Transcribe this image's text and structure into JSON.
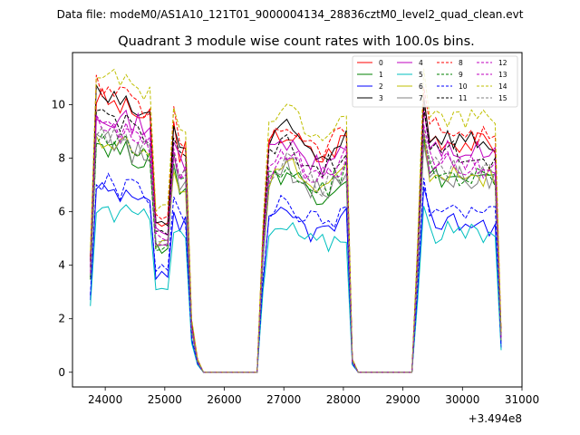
{
  "suptitle": "Data file: modeM0/AS1A10_121T01_9000004134_28836cztM0_level2_quad_clean.evt",
  "chart_data": {
    "type": "line",
    "title": "Quadrant 3 module wise count rates with 100.0s bins.",
    "xlabel": "",
    "ylabel": "",
    "x_offset_label": "+3.494e8",
    "xlim": [
      23450,
      31000
    ],
    "ylim": [
      -0.55,
      11.95
    ],
    "xticks": [
      24000,
      25000,
      26000,
      27000,
      28000,
      29000,
      30000,
      31000
    ],
    "xtick_labels": [
      "24000",
      "25000",
      "26000",
      "27000",
      "28000",
      "29000",
      "30000",
      "31000"
    ],
    "yticks": [
      0,
      2,
      4,
      6,
      8,
      10
    ],
    "ytick_labels": [
      "0",
      "2",
      "4",
      "6",
      "8",
      "10"
    ],
    "grid": false,
    "legend_position": "top-right",
    "segments": [
      {
        "x_start": 23750,
        "x_end": 25550,
        "value": "observed"
      },
      {
        "x_start": 25650,
        "x_end": 26550,
        "value": "zero"
      },
      {
        "x_start": 26650,
        "x_end": 28150,
        "value": "observed"
      },
      {
        "x_start": 28250,
        "x_end": 29150,
        "value": "zero"
      },
      {
        "x_start": 29250,
        "x_end": 30650,
        "value": "observed"
      }
    ],
    "series": [
      {
        "name": "0",
        "color": "#ff0000",
        "dash": "solid",
        "level": 9.2
      },
      {
        "name": "1",
        "color": "#008000",
        "dash": "solid",
        "level": 7.7
      },
      {
        "name": "2",
        "color": "#0000ff",
        "dash": "solid",
        "level": 6.0
      },
      {
        "name": "3",
        "color": "#000000",
        "dash": "solid",
        "level": 9.3
      },
      {
        "name": "4",
        "color": "#bf00bf",
        "dash": "solid",
        "level": 8.8
      },
      {
        "name": "5",
        "color": "#00bfbf",
        "dash": "solid",
        "level": 5.5
      },
      {
        "name": "6",
        "color": "#bfbf00",
        "dash": "solid",
        "level": 7.9
      },
      {
        "name": "7",
        "color": "#808080",
        "dash": "solid",
        "level": 7.8
      },
      {
        "name": "8",
        "color": "#ff0000",
        "dash": "dashed",
        "level": 9.6
      },
      {
        "name": "9",
        "color": "#008000",
        "dash": "dashed",
        "level": 7.9
      },
      {
        "name": "10",
        "color": "#0000ff",
        "dash": "dashed",
        "level": 6.4
      },
      {
        "name": "11",
        "color": "#000000",
        "dash": "dashed",
        "level": 8.7
      },
      {
        "name": "12",
        "color": "#bf00bf",
        "dash": "dashed",
        "level": 8.4
      },
      {
        "name": "13",
        "color": "#bf00bf",
        "dash": "dashed",
        "level": 8.2
      },
      {
        "name": "14",
        "color": "#bfbf00",
        "dash": "dashed",
        "level": 10.1
      },
      {
        "name": "15",
        "color": "#808080",
        "dash": "dashed",
        "level": 8.0
      }
    ]
  }
}
